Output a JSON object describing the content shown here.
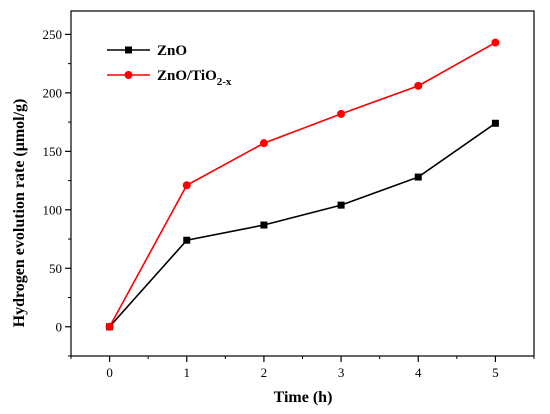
{
  "chart_data": {
    "type": "line",
    "xlabel": "Time (h)",
    "ylabel": "Hydrogen evolution rate (μmol/g)",
    "x": [
      0,
      1,
      2,
      3,
      4,
      5
    ],
    "xlim": [
      -0.5,
      5.5
    ],
    "ylim": [
      -25,
      270
    ],
    "xticks": [
      0,
      1,
      2,
      3,
      4,
      5
    ],
    "yticks": [
      0,
      50,
      100,
      150,
      200,
      250
    ],
    "grid": false,
    "legend_position": "top-left",
    "series": [
      {
        "name": "ZnO",
        "legend_base": "ZnO",
        "legend_sub": "",
        "color": "#000000",
        "marker": "square",
        "values": [
          0,
          74,
          87,
          104,
          128,
          174
        ]
      },
      {
        "name": "ZnO/TiO2-x",
        "legend_base": "ZnO/TiO",
        "legend_sub": "2-x",
        "color": "#ff0000",
        "marker": "circle",
        "values": [
          0,
          121,
          157,
          182,
          206,
          243
        ]
      }
    ]
  }
}
